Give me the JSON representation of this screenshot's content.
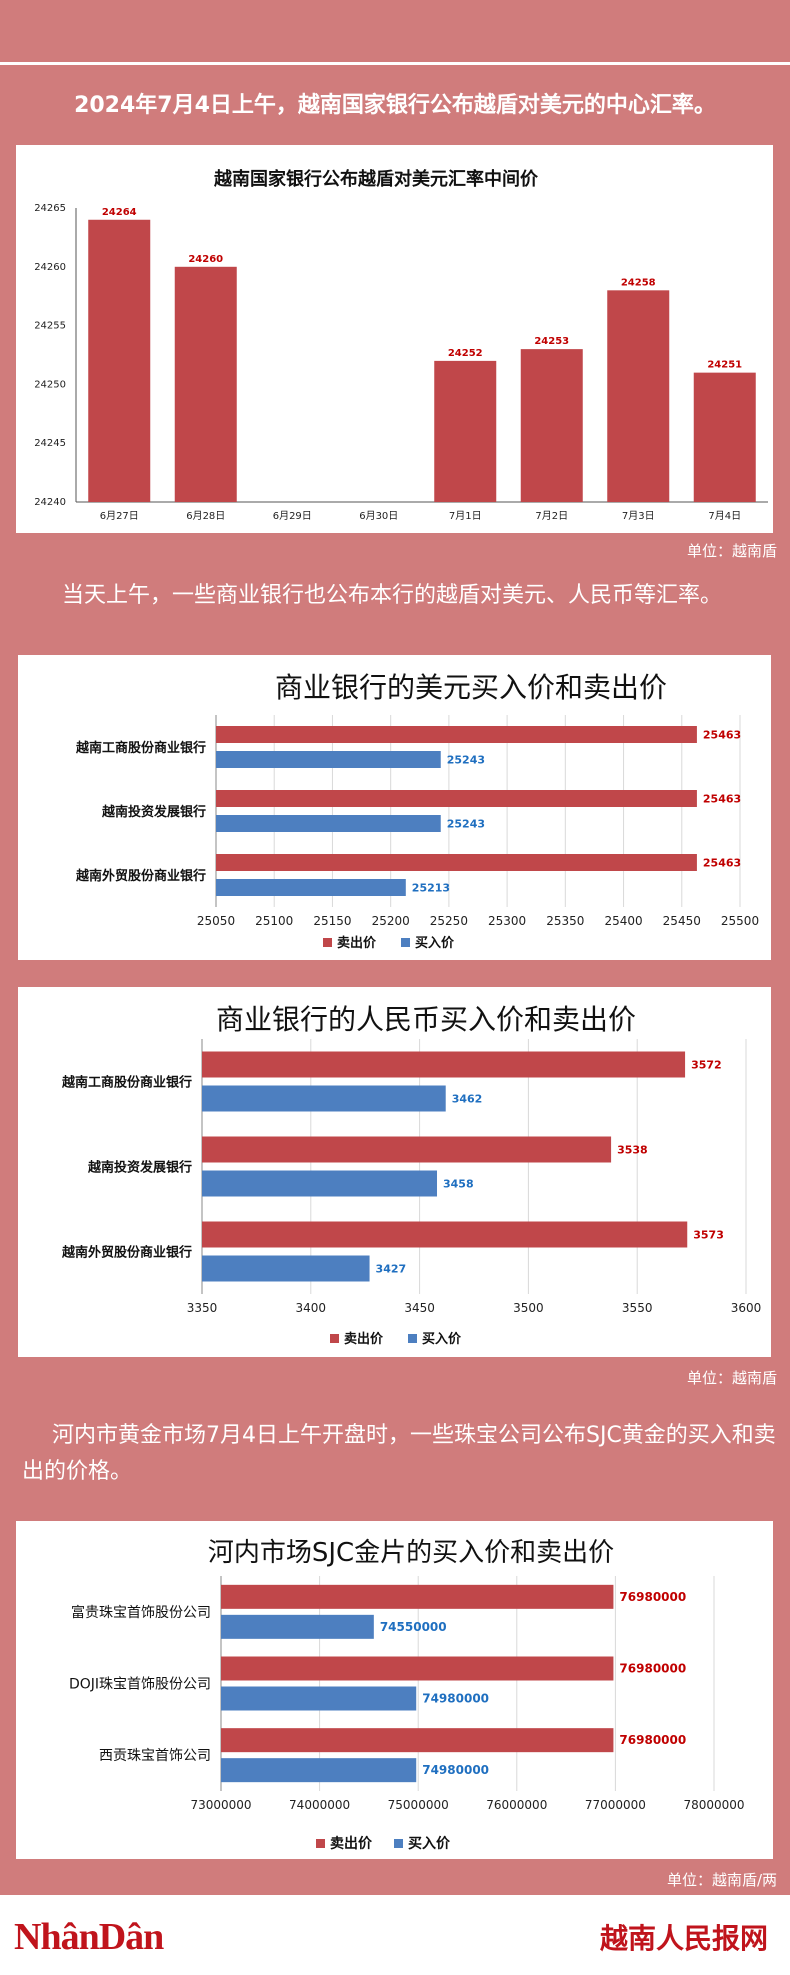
{
  "intro": "2024年7月4日上午，越南国家银行公布越盾对美元的中心汇率。",
  "mid_text": "当天上午，一些商业银行也公布本行的越盾对美元、人民币等汇率。",
  "gold_text": "河内市黄金市场7月4日上午开盘时，一些珠宝公司公布SJC黄金的买入和卖出的价格。",
  "unit1": "单位：越南盾",
  "unit2": "单位：越南盾",
  "unit3": "单位：越南盾/两",
  "footer": {
    "logo_left": "NhânDân",
    "logo_right": "越南人民报网"
  },
  "colors": {
    "background": "#d07c7c",
    "sell": "#c0474a",
    "buy": "#4d7fc0",
    "sell_label": "#c00000",
    "buy_label": "#1f6fc0"
  },
  "chart_data": [
    {
      "type": "bar",
      "title": "越南国家银行公布越盾对美元汇率中间价",
      "categories": [
        "6月27日",
        "6月28日",
        "6月29日",
        "6月30日",
        "7月1日",
        "7月2日",
        "7月3日",
        "7月4日"
      ],
      "values": [
        24264,
        24260,
        null,
        null,
        24252,
        24253,
        24258,
        24251
      ],
      "ylim": [
        24240,
        24265
      ],
      "yticks": [
        24240,
        24245,
        24250,
        24255,
        24260,
        24265
      ],
      "grid": false
    },
    {
      "type": "bar",
      "orientation": "horizontal",
      "title": "商业银行的美元买入价和卖出价",
      "categories": [
        "越南工商股份商业银行",
        "越南投资发展银行",
        "越南外贸股份商业银行"
      ],
      "series": [
        {
          "name": "卖出价",
          "values": [
            25463,
            25463,
            25463
          ]
        },
        {
          "name": "买入价",
          "values": [
            25243,
            25243,
            25213
          ]
        }
      ],
      "xlim": [
        25050,
        25500
      ],
      "xticks": [
        25050,
        25100,
        25150,
        25200,
        25250,
        25300,
        25350,
        25400,
        25450,
        25500
      ],
      "legend": "bottom",
      "grid": true
    },
    {
      "type": "bar",
      "orientation": "horizontal",
      "title": "商业银行的人民币买入价和卖出价",
      "categories": [
        "越南工商股份商业银行",
        "越南投资发展银行",
        "越南外贸股份商业银行"
      ],
      "series": [
        {
          "name": "卖出价",
          "values": [
            3572,
            3538,
            3573
          ]
        },
        {
          "name": "买入价",
          "values": [
            3462,
            3458,
            3427
          ]
        }
      ],
      "xlim": [
        3350,
        3600
      ],
      "xticks": [
        3350,
        3400,
        3450,
        3500,
        3550,
        3600
      ],
      "legend": "bottom",
      "grid": true
    },
    {
      "type": "bar",
      "orientation": "horizontal",
      "title": "河内市场SJC金片的买入价和卖出价",
      "categories": [
        "富贵珠宝首饰股份公司",
        "DOJI珠宝首饰股份公司",
        "西贡珠宝首饰公司"
      ],
      "series": [
        {
          "name": "卖出价",
          "values": [
            76980000,
            76980000,
            76980000
          ]
        },
        {
          "name": "买入价",
          "values": [
            74550000,
            74980000,
            74980000
          ]
        }
      ],
      "xlim": [
        73000000,
        78000000
      ],
      "xticks": [
        73000000,
        74000000,
        75000000,
        76000000,
        77000000,
        78000000
      ],
      "legend": "bottom",
      "grid": true
    }
  ]
}
